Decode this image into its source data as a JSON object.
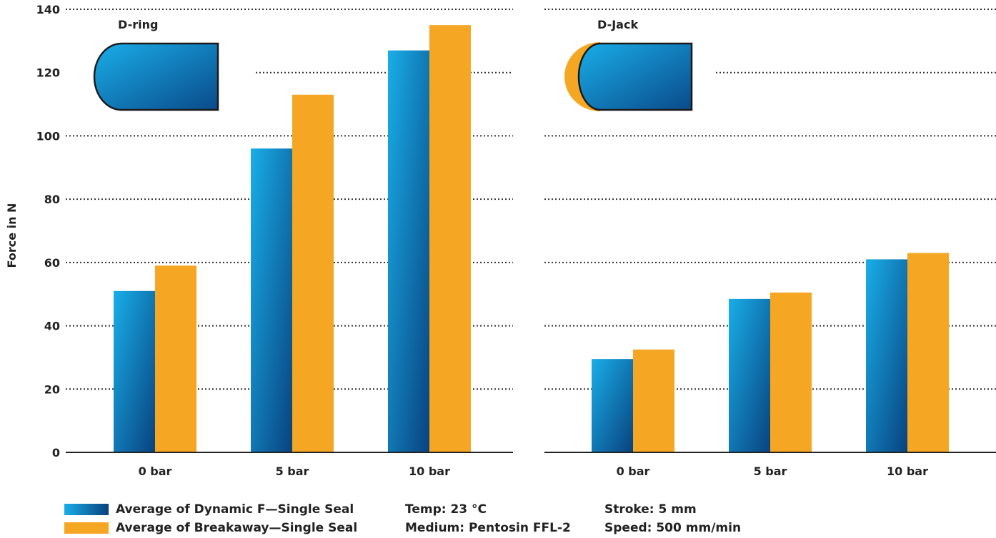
{
  "chart_data": {
    "type": "bar",
    "ylabel": "Force in N",
    "ylim": [
      0,
      140
    ],
    "yticks": [
      0,
      20,
      40,
      60,
      80,
      100,
      120,
      140
    ],
    "grid": "horizontal-dotted",
    "categories": [
      "0 bar",
      "5 bar",
      "10 bar"
    ],
    "panels": [
      {
        "title": "D-ring",
        "series": [
          {
            "name": "Average of Dynamic F—Single Seal",
            "values": [
              51,
              96,
              127
            ]
          },
          {
            "name": "Average of Breakaway—Single Seal",
            "values": [
              59,
              113,
              135
            ]
          }
        ]
      },
      {
        "title": "D-Jack",
        "series": [
          {
            "name": "Average of Dynamic F—Single Seal",
            "values": [
              29.5,
              48.5,
              61
            ]
          },
          {
            "name": "Average of Breakaway—Single Seal",
            "values": [
              32.5,
              50.5,
              63
            ]
          }
        ]
      }
    ],
    "legend_position": "bottom-left"
  },
  "colors": {
    "dynamic_light": "#18a8e4",
    "dynamic_dark": "#08427f",
    "breakaway": "#f5a623"
  },
  "legend": {
    "dynamic_label": "Average of Dynamic F—Single Seal",
    "breakaway_label": "Average of Breakaway—Single Seal"
  },
  "conditions": {
    "temp": "Temp: 23 °C",
    "medium": "Medium: Pentosin FFL-2",
    "stroke": "Stroke: 5 mm",
    "speed": "Speed: 500 mm/min"
  }
}
